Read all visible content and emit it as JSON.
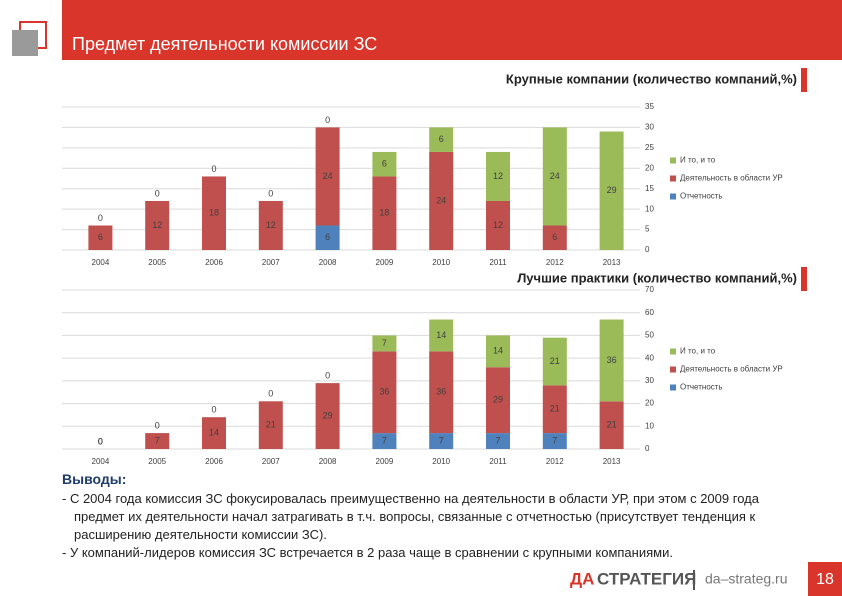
{
  "header": {
    "title": "Предмет деятельности комиссии ЗС"
  },
  "chart_data": [
    {
      "type": "stacked-bar",
      "title": "Крупные компании (количество компаний,%)",
      "categories": [
        "2004",
        "2005",
        "2006",
        "2007",
        "2008",
        "2009",
        "2010",
        "2011",
        "2012",
        "2013"
      ],
      "series": [
        {
          "name": "Отчетность",
          "color": "#4f81bd",
          "values": [
            0,
            0,
            0,
            0,
            6,
            0,
            0,
            0,
            0,
            0
          ]
        },
        {
          "name": "Деятельность в области УР",
          "color": "#c0504d",
          "values": [
            6,
            12,
            18,
            12,
            24,
            18,
            24,
            12,
            6,
            0
          ]
        },
        {
          "name": "И то, и то",
          "color": "#9bbb59",
          "values": [
            0,
            0,
            0,
            0,
            0,
            6,
            6,
            12,
            24,
            29
          ]
        }
      ],
      "ylim": [
        0,
        35
      ],
      "yticks": [
        0,
        5,
        10,
        15,
        20,
        25,
        30,
        35
      ],
      "y_axis_side": "right",
      "grid": true,
      "legend": "right"
    },
    {
      "type": "stacked-bar",
      "title": "Лучшие практики (количество компаний,%)",
      "categories": [
        "2004",
        "2005",
        "2006",
        "2007",
        "2008",
        "2009",
        "2010",
        "2011",
        "2012",
        "2013"
      ],
      "series": [
        {
          "name": "Отчетность",
          "color": "#4f81bd",
          "values": [
            0,
            0,
            0,
            0,
            0,
            7,
            7,
            7,
            7,
            0
          ]
        },
        {
          "name": "Деятельность в области УР",
          "color": "#c0504d",
          "values": [
            0,
            7,
            14,
            21,
            29,
            36,
            36,
            29,
            21,
            21
          ]
        },
        {
          "name": "И то, и то",
          "color": "#9bbb59",
          "values": [
            0,
            0,
            0,
            0,
            0,
            7,
            14,
            14,
            21,
            36
          ]
        }
      ],
      "ylim": [
        0,
        70
      ],
      "yticks": [
        0,
        10,
        20,
        30,
        40,
        50,
        60,
        70
      ],
      "y_axis_side": "right",
      "grid": true,
      "legend": "right"
    }
  ],
  "conclusions": {
    "heading": "Выводы:",
    "items": [
      "С 2004 года комиссия ЗС фокусировалась преимущественно на деятельности в области УР, при этом с 2009 года предмет их деятельности начал затрагивать в т.ч. вопросы, связанные с отчетностью (присутствует тенденция к расширению деятельности комиссии ЗС).",
      "У компаний-лидеров комиссия ЗС встречается в 2 раза чаще в сравнении с крупными компаниями."
    ]
  },
  "footer": {
    "logo": [
      "ДА",
      "СТРАТЕГИЯ"
    ],
    "site": "da–strateg.ru",
    "page": "18"
  }
}
